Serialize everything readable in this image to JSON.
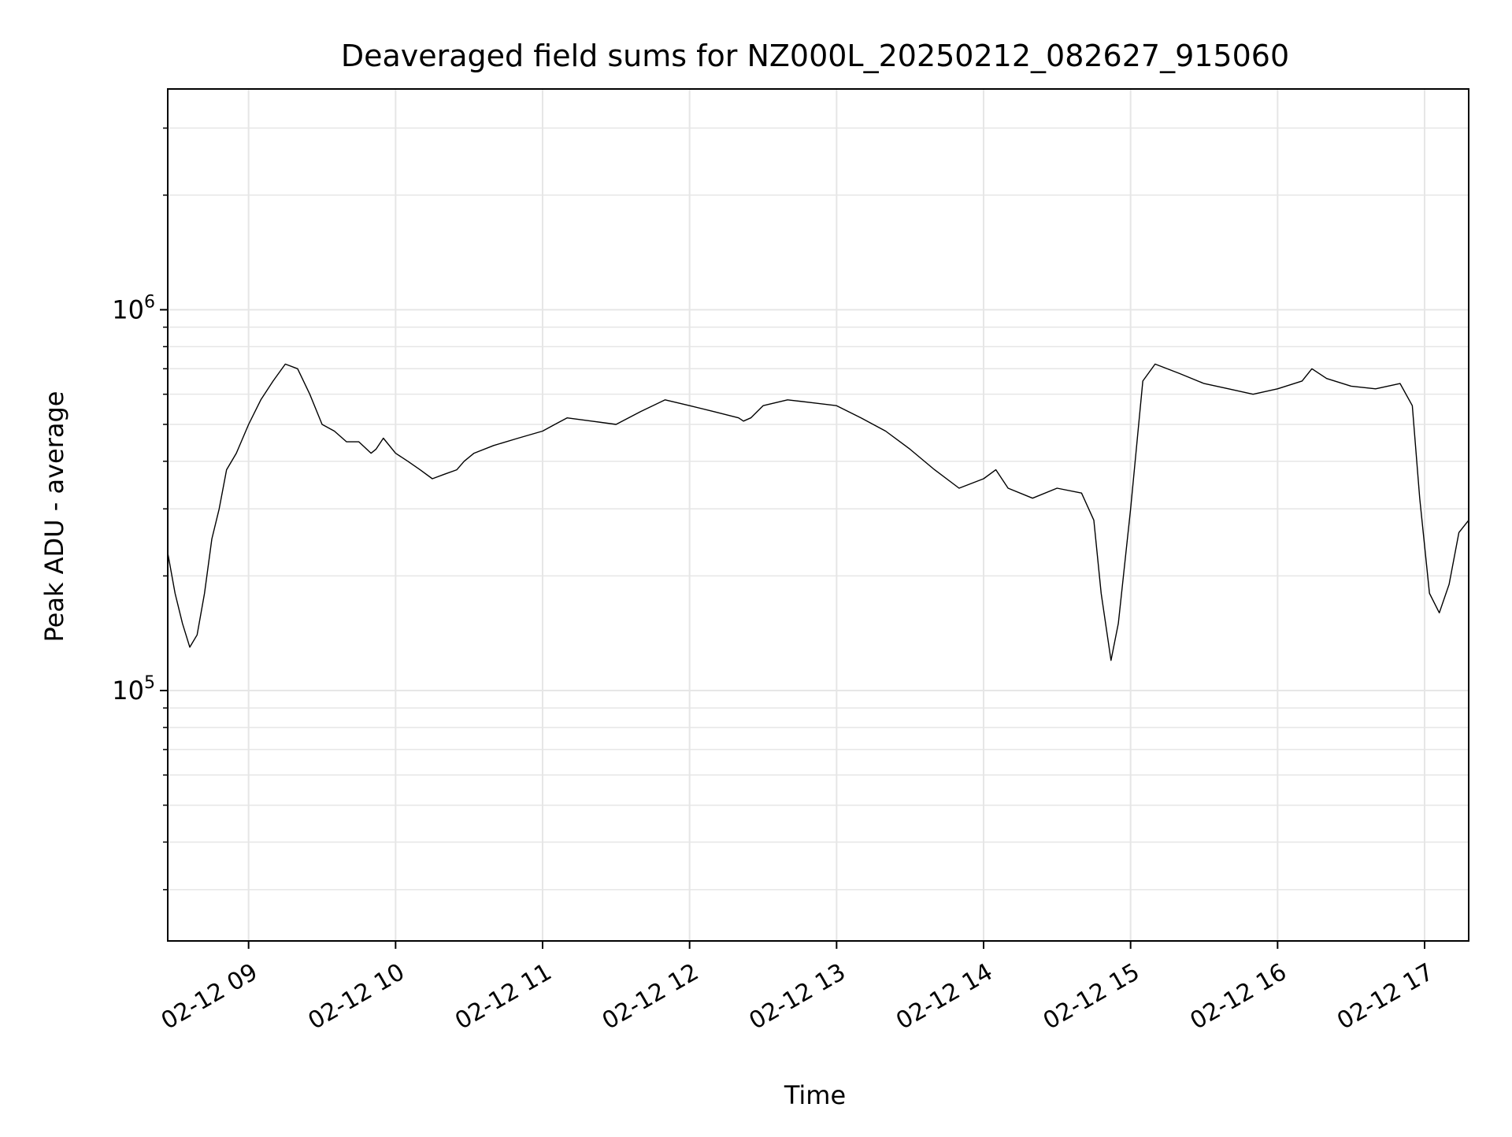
{
  "chart_data": {
    "type": "line",
    "title": "Deaveraged field sums for NZ000L_20250212_082627_915060",
    "xlabel": "Time",
    "ylabel": "Peak ADU - average",
    "x_range": [
      "2025-02-12 08:27",
      "2025-02-12 17:18"
    ],
    "y_range": [
      22000,
      3800000
    ],
    "yscale": "log",
    "grid": true,
    "legend": "none",
    "line_color": "#000000",
    "x_ticks": [
      {
        "value": "2025-02-12 09:00",
        "label": "02-12 09"
      },
      {
        "value": "2025-02-12 10:00",
        "label": "02-12 10"
      },
      {
        "value": "2025-02-12 11:00",
        "label": "02-12 11"
      },
      {
        "value": "2025-02-12 12:00",
        "label": "02-12 12"
      },
      {
        "value": "2025-02-12 13:00",
        "label": "02-12 13"
      },
      {
        "value": "2025-02-12 14:00",
        "label": "02-12 14"
      },
      {
        "value": "2025-02-12 15:00",
        "label": "02-12 15"
      },
      {
        "value": "2025-02-12 16:00",
        "label": "02-12 16"
      },
      {
        "value": "2025-02-12 17:00",
        "label": "02-12 17"
      }
    ],
    "y_ticks": [
      {
        "value": 100000,
        "base": "10",
        "exp": "5"
      },
      {
        "value": 1000000,
        "base": "10",
        "exp": "6"
      }
    ],
    "series": [
      {
        "x": [
          "2025-02-12 08:27",
          "2025-02-12 08:30",
          "2025-02-12 08:33",
          "2025-02-12 08:36",
          "2025-02-12 08:39",
          "2025-02-12 08:42",
          "2025-02-12 08:45",
          "2025-02-12 08:48",
          "2025-02-12 08:51",
          "2025-02-12 08:55",
          "2025-02-12 09:00",
          "2025-02-12 09:05",
          "2025-02-12 09:10",
          "2025-02-12 09:15",
          "2025-02-12 09:20",
          "2025-02-12 09:25",
          "2025-02-12 09:30",
          "2025-02-12 09:35",
          "2025-02-12 09:40",
          "2025-02-12 09:45",
          "2025-02-12 09:50",
          "2025-02-12 09:52",
          "2025-02-12 09:55",
          "2025-02-12 10:00",
          "2025-02-12 10:05",
          "2025-02-12 10:10",
          "2025-02-12 10:15",
          "2025-02-12 10:20",
          "2025-02-12 10:25",
          "2025-02-12 10:28",
          "2025-02-12 10:32",
          "2025-02-12 10:40",
          "2025-02-12 10:50",
          "2025-02-12 11:00",
          "2025-02-12 11:05",
          "2025-02-12 11:10",
          "2025-02-12 11:20",
          "2025-02-12 11:30",
          "2025-02-12 11:40",
          "2025-02-12 11:50",
          "2025-02-12 12:00",
          "2025-02-12 12:10",
          "2025-02-12 12:20",
          "2025-02-12 12:22",
          "2025-02-12 12:25",
          "2025-02-12 12:30",
          "2025-02-12 12:40",
          "2025-02-12 12:50",
          "2025-02-12 13:00",
          "2025-02-12 13:10",
          "2025-02-12 13:20",
          "2025-02-12 13:30",
          "2025-02-12 13:40",
          "2025-02-12 13:50",
          "2025-02-12 14:00",
          "2025-02-12 14:05",
          "2025-02-12 14:10",
          "2025-02-12 14:20",
          "2025-02-12 14:30",
          "2025-02-12 14:40",
          "2025-02-12 14:45",
          "2025-02-12 14:48",
          "2025-02-12 14:52",
          "2025-02-12 14:55",
          "2025-02-12 15:00",
          "2025-02-12 15:05",
          "2025-02-12 15:10",
          "2025-02-12 15:20",
          "2025-02-12 15:30",
          "2025-02-12 15:40",
          "2025-02-12 15:50",
          "2025-02-12 16:00",
          "2025-02-12 16:10",
          "2025-02-12 16:14",
          "2025-02-12 16:20",
          "2025-02-12 16:30",
          "2025-02-12 16:40",
          "2025-02-12 16:50",
          "2025-02-12 16:55",
          "2025-02-12 16:58",
          "2025-02-12 17:02",
          "2025-02-12 17:06",
          "2025-02-12 17:10",
          "2025-02-12 17:14",
          "2025-02-12 17:18"
        ],
        "y": [
          230000,
          180000,
          150000,
          130000,
          140000,
          180000,
          250000,
          300000,
          380000,
          420000,
          500000,
          580000,
          650000,
          720000,
          700000,
          600000,
          500000,
          480000,
          450000,
          450000,
          420000,
          430000,
          460000,
          420000,
          400000,
          380000,
          360000,
          370000,
          380000,
          400000,
          420000,
          440000,
          460000,
          480000,
          500000,
          520000,
          510000,
          500000,
          540000,
          580000,
          560000,
          540000,
          520000,
          510000,
          520000,
          560000,
          580000,
          570000,
          560000,
          520000,
          480000,
          430000,
          380000,
          340000,
          360000,
          380000,
          340000,
          320000,
          340000,
          330000,
          280000,
          180000,
          120000,
          150000,
          300000,
          650000,
          720000,
          680000,
          640000,
          620000,
          600000,
          620000,
          650000,
          700000,
          660000,
          630000,
          620000,
          640000,
          560000,
          320000,
          180000,
          160000,
          190000,
          260000,
          280000
        ]
      }
    ]
  }
}
